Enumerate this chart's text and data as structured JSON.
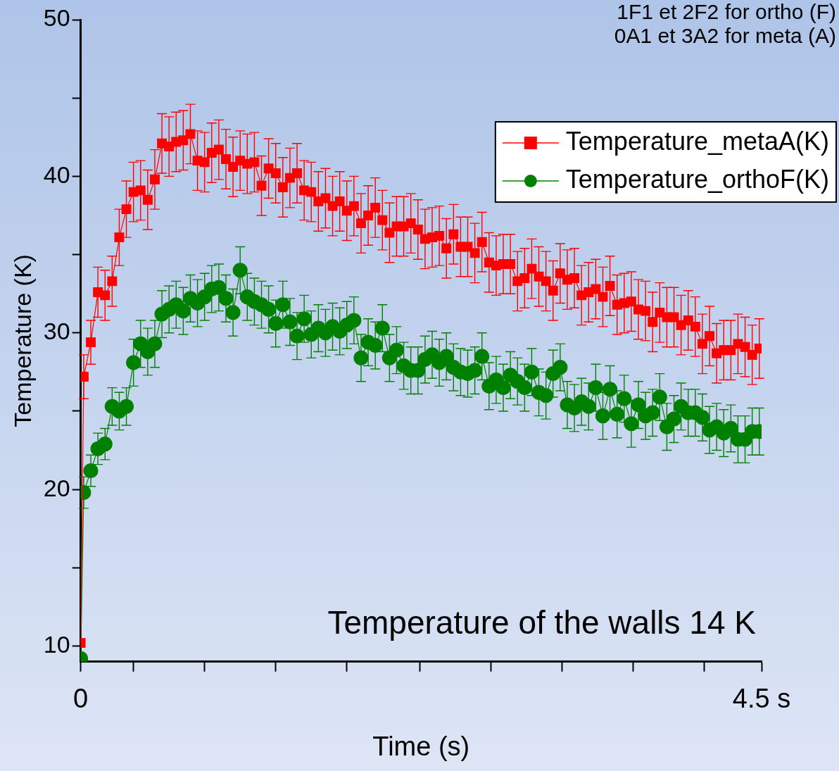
{
  "chart_data": {
    "type": "line",
    "xlabel": "Time (s)",
    "ylabel": "Temperature (K)",
    "annotations": [
      "1F1 et 2F2 for ortho (F)",
      "0A1 et 3A2 for meta (A)",
      "Temperature of the walls 14 K"
    ],
    "x": [
      0,
      0.02,
      0.067,
      0.114,
      0.161,
      0.208,
      0.255,
      0.302,
      0.349,
      0.396,
      0.443,
      0.49,
      0.537,
      0.584,
      0.631,
      0.678,
      0.725,
      0.772,
      0.819,
      0.866,
      0.913,
      0.96,
      1.007,
      1.054,
      1.101,
      1.148,
      1.195,
      1.242,
      1.289,
      1.336,
      1.383,
      1.43,
      1.477,
      1.524,
      1.571,
      1.618,
      1.665,
      1.712,
      1.759,
      1.806,
      1.853,
      1.9,
      1.947,
      1.994,
      2.041,
      2.088,
      2.135,
      2.182,
      2.229,
      2.276,
      2.323,
      2.37,
      2.417,
      2.464,
      2.511,
      2.558,
      2.605,
      2.652,
      2.699,
      2.746,
      2.793,
      2.84,
      2.887,
      2.934,
      2.981,
      3.028,
      3.075,
      3.122,
      3.169,
      3.216,
      3.263,
      3.31,
      3.357,
      3.404,
      3.451,
      3.498,
      3.545,
      3.592,
      3.639,
      3.686,
      3.733,
      3.78,
      3.827,
      3.874,
      3.921,
      3.968,
      4.015,
      4.062,
      4.109,
      4.156,
      4.203,
      4.25,
      4.297,
      4.344,
      4.391,
      4.438,
      4.485
    ],
    "series": [
      {
        "name": "Temperature_metaA(K)",
        "color": "#ff0000",
        "marker": "square",
        "values": [
          10.2,
          27.2,
          29.4,
          32.6,
          32.4,
          33.3,
          36.1,
          37.9,
          39.0,
          39.1,
          38.5,
          39.8,
          42.1,
          41.9,
          42.2,
          42.3,
          42.7,
          41.0,
          40.9,
          41.5,
          41.7,
          41.1,
          40.6,
          41.0,
          40.8,
          40.9,
          39.4,
          40.5,
          40.2,
          39.3,
          39.9,
          40.2,
          39.1,
          39.0,
          38.4,
          38.6,
          38.1,
          38.4,
          37.8,
          38.1,
          37.0,
          37.5,
          38.0,
          37.2,
          36.4,
          36.8,
          36.8,
          37.0,
          36.6,
          36.0,
          36.1,
          36.2,
          35.4,
          36.3,
          35.5,
          35.5,
          35.1,
          35.8,
          34.5,
          34.3,
          34.4,
          34.4,
          33.3,
          33.5,
          34.1,
          33.6,
          33.3,
          32.7,
          33.8,
          33.4,
          33.5,
          32.4,
          32.6,
          32.8,
          32.3,
          33.0,
          31.8,
          31.9,
          32.0,
          31.5,
          31.4,
          30.7,
          31.3,
          31.0,
          31.0,
          30.5,
          30.8,
          30.4,
          29.3,
          29.8,
          28.7,
          28.9,
          28.9,
          29.3,
          29.1,
          28.6,
          29.0
        ],
        "errors": [
          null,
          1.4,
          1.4,
          1.6,
          1.6,
          1.6,
          1.8,
          1.8,
          1.9,
          1.9,
          1.9,
          1.9,
          1.9,
          1.9,
          1.9,
          1.9,
          1.9,
          1.9,
          1.9,
          1.9,
          1.9,
          1.9,
          1.9,
          1.9,
          1.9,
          1.9,
          1.9,
          1.9,
          1.9,
          1.9,
          1.9,
          1.9,
          1.9,
          1.9,
          1.9,
          1.9,
          1.9,
          1.9,
          1.9,
          1.9,
          1.9,
          1.9,
          1.9,
          1.9,
          1.9,
          1.9,
          1.9,
          1.9,
          1.9,
          1.9,
          1.9,
          1.9,
          1.9,
          1.9,
          1.9,
          1.9,
          1.9,
          1.9,
          1.9,
          1.9,
          1.9,
          1.9,
          1.9,
          1.9,
          1.9,
          1.9,
          1.9,
          1.9,
          1.9,
          1.9,
          1.9,
          1.9,
          1.9,
          1.9,
          1.9,
          1.9,
          1.9,
          1.9,
          1.9,
          1.9,
          1.9,
          1.9,
          1.9,
          1.9,
          1.9,
          1.9,
          1.9,
          1.9,
          1.9,
          1.9,
          1.9,
          1.9,
          1.9,
          1.9,
          1.9,
          1.9,
          1.9
        ]
      },
      {
        "name": "Temperature_orthoF(K)",
        "color": "#008000",
        "marker": "circle",
        "values": [
          9.2,
          19.8,
          21.2,
          22.6,
          22.9,
          25.3,
          25.0,
          25.3,
          28.1,
          29.3,
          28.8,
          29.3,
          31.2,
          31.5,
          31.8,
          31.4,
          32.2,
          31.9,
          32.3,
          32.8,
          32.9,
          32.2,
          31.3,
          34.0,
          32.3,
          32.0,
          31.8,
          31.5,
          30.6,
          31.8,
          30.7,
          29.8,
          30.9,
          29.9,
          30.3,
          30.0,
          30.4,
          30.1,
          30.5,
          30.8,
          28.4,
          29.4,
          29.2,
          30.3,
          28.4,
          28.9,
          27.9,
          27.6,
          27.6,
          28.3,
          28.6,
          28.1,
          28.5,
          27.8,
          27.5,
          27.4,
          27.6,
          28.5,
          26.6,
          27.0,
          26.5,
          27.3,
          26.9,
          26.5,
          27.5,
          26.2,
          26.0,
          27.4,
          27.8,
          25.4,
          25.2,
          25.6,
          25.3,
          26.5,
          24.7,
          26.4,
          24.8,
          25.8,
          24.2,
          25.4,
          24.7,
          24.9,
          25.9,
          24.0,
          24.5,
          25.3,
          24.9,
          24.9,
          24.6,
          23.8,
          24.0,
          23.6,
          23.9,
          23.2,
          23.2,
          23.7,
          23.7
        ],
        "errors": [
          null,
          1.0,
          1.0,
          1.0,
          1.0,
          1.2,
          1.2,
          1.2,
          1.5,
          1.5,
          1.5,
          1.5,
          1.5,
          1.5,
          1.5,
          1.5,
          1.5,
          1.5,
          1.5,
          1.5,
          1.5,
          1.5,
          1.5,
          1.5,
          1.5,
          1.5,
          1.5,
          1.5,
          1.5,
          1.5,
          1.5,
          1.5,
          1.5,
          1.5,
          1.5,
          1.5,
          1.5,
          1.5,
          1.5,
          1.5,
          1.5,
          1.5,
          1.5,
          1.5,
          1.5,
          1.5,
          1.5,
          1.5,
          1.5,
          1.5,
          1.5,
          1.5,
          1.5,
          1.5,
          1.5,
          1.5,
          1.5,
          1.5,
          1.5,
          1.5,
          1.5,
          1.5,
          1.5,
          1.5,
          1.5,
          1.5,
          1.5,
          1.5,
          1.5,
          1.5,
          1.5,
          1.5,
          1.5,
          1.5,
          1.5,
          1.5,
          1.5,
          1.5,
          1.5,
          1.5,
          1.5,
          1.5,
          1.5,
          1.5,
          1.5,
          1.5,
          1.5,
          1.5,
          1.5,
          1.5,
          1.5,
          1.5,
          1.5,
          1.5,
          1.5,
          1.5,
          1.5
        ]
      }
    ],
    "xlim": [
      0,
      4.5
    ],
    "xticks": [
      0,
      {
        "value": 0.35,
        "label": null
      },
      {
        "value": 0.82,
        "label": null
      },
      {
        "value": 1.29,
        "label": null
      },
      {
        "value": 1.76,
        "label": null
      },
      {
        "value": 2.24,
        "label": null
      },
      {
        "value": 2.71,
        "label": null
      },
      {
        "value": 3.18,
        "label": null
      },
      {
        "value": 3.65,
        "label": null
      },
      {
        "value": 4.12,
        "label": null
      },
      {
        "value": 4.5,
        "label": "4.5 s"
      }
    ],
    "ylim": [
      9,
      50
    ],
    "yticks": [
      10,
      {
        "value": 15,
        "label": null
      },
      20,
      {
        "value": 25,
        "label": null
      },
      30,
      {
        "value": 35,
        "label": null
      },
      40,
      {
        "value": 45,
        "label": null
      },
      50
    ],
    "legend": "top right"
  }
}
